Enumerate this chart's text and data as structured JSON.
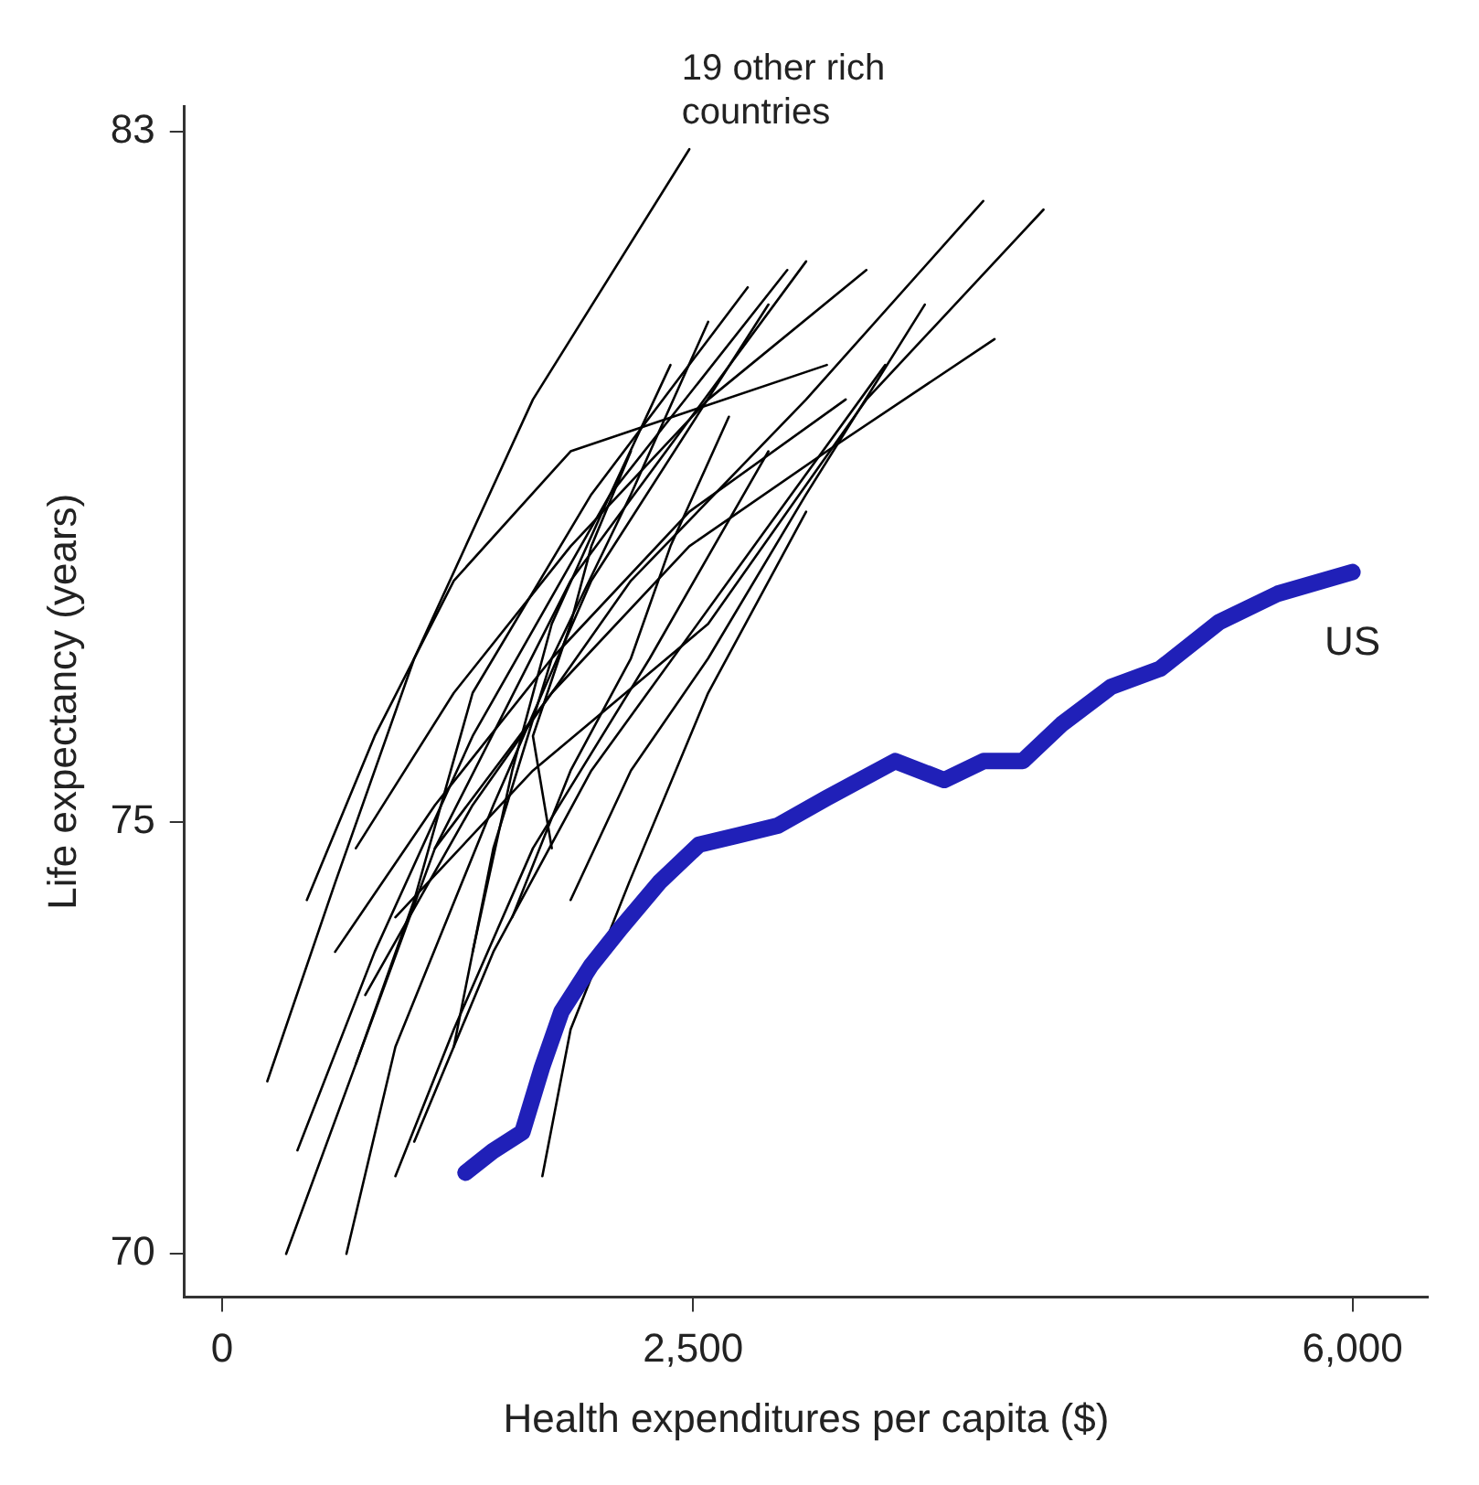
{
  "chart_data": {
    "type": "line",
    "xlabel": "Health expenditures per capita ($)",
    "ylabel": "Life expectancy (years)",
    "annotations": [
      "19 other rich countries"
    ],
    "xlim": [
      -200,
      6400
    ],
    "ylim": [
      69.5,
      83.3
    ],
    "xticks": [
      0,
      {
        "value": 2500,
        "label": "2,500"
      },
      {
        "value": 6000,
        "label": "6,000"
      }
    ],
    "yticks": [
      70,
      75,
      83
    ],
    "marker": "none",
    "legend": false,
    "series": [
      {
        "color": "#000000",
        "x": [
          240,
          600,
          1020,
          1650,
          2480
        ],
        "values": [
          72.0,
          74.3,
          76.9,
          79.9,
          82.8
        ]
      },
      {
        "color": "#000000",
        "x": [
          340,
          710,
          1130,
          1850,
          3100
        ],
        "values": [
          70.0,
          72.2,
          74.7,
          77.8,
          81.5
        ]
      },
      {
        "color": "#000000",
        "x": [
          400,
          810,
          1330,
          2060,
          3000
        ],
        "values": [
          71.2,
          73.5,
          76.0,
          78.8,
          81.4
        ]
      },
      {
        "color": "#000000",
        "x": [
          660,
          920,
          1440,
          1960,
          2900
        ],
        "values": [
          70.0,
          72.4,
          75.2,
          77.8,
          81.0
        ]
      },
      {
        "color": "#000000",
        "x": [
          710,
          1020,
          1330,
          1960,
          2790
        ],
        "values": [
          72.2,
          74.1,
          76.5,
          78.8,
          81.2
        ]
      },
      {
        "color": "#000000",
        "x": [
          450,
          810,
          1230,
          1850,
          3210
        ],
        "values": [
          74.1,
          76.0,
          77.8,
          79.3,
          80.3
        ]
      },
      {
        "color": "#000000",
        "x": [
          760,
          1330,
          2170,
          3100,
          4040
        ],
        "values": [
          73.0,
          75.2,
          77.8,
          79.9,
          82.2
        ]
      },
      {
        "color": "#000000",
        "x": [
          920,
          1650,
          2580,
          3420,
          4360
        ],
        "values": [
          73.9,
          75.6,
          77.3,
          79.9,
          82.1
        ]
      },
      {
        "color": "#000000",
        "x": [
          1130,
          1750,
          2480,
          3210,
          4100
        ],
        "values": [
          74.7,
          76.5,
          78.2,
          79.3,
          80.6
        ]
      },
      {
        "color": "#000000",
        "x": [
          1020,
          1440,
          1960,
          2690,
          3520
        ],
        "values": [
          71.3,
          73.5,
          75.6,
          77.8,
          80.3
        ]
      },
      {
        "color": "#000000",
        "x": [
          1230,
          1440,
          1750,
          2170,
          2580
        ],
        "values": [
          72.4,
          74.7,
          76.9,
          78.8,
          80.8
        ]
      },
      {
        "color": "#000000",
        "x": [
          1330,
          1540,
          1750,
          2060,
          2380
        ],
        "values": [
          73.5,
          75.6,
          77.3,
          78.8,
          80.3
        ]
      },
      {
        "color": "#000000",
        "x": [
          1540,
          1850,
          2170,
          2380,
          2690
        ],
        "values": [
          73.9,
          75.6,
          76.9,
          78.2,
          79.7
        ]
      },
      {
        "color": "#000000",
        "x": [
          1750,
          1650,
          1850,
          1960,
          2170
        ],
        "values": [
          74.7,
          76.0,
          77.3,
          78.2,
          79.3
        ]
      },
      {
        "color": "#000000",
        "x": [
          1850,
          2170,
          2580,
          3100,
          3730
        ],
        "values": [
          74.1,
          75.6,
          76.9,
          78.8,
          81.0
        ]
      },
      {
        "color": "#000000",
        "x": [
          710,
          1230,
          1850,
          2580,
          3420
        ],
        "values": [
          74.7,
          76.5,
          78.2,
          79.9,
          81.4
        ]
      },
      {
        "color": "#000000",
        "x": [
          600,
          1130,
          1750,
          2480,
          3310
        ],
        "values": [
          73.5,
          75.2,
          76.9,
          78.6,
          79.9
        ]
      },
      {
        "color": "#000000",
        "x": [
          920,
          1230,
          1650,
          2270,
          2900
        ],
        "values": [
          70.9,
          72.6,
          74.7,
          76.9,
          79.3
        ]
      },
      {
        "color": "#000000",
        "x": [
          1700,
          1850,
          2160,
          2580,
          3100
        ],
        "values": [
          70.9,
          72.6,
          74.3,
          76.5,
          78.6
        ]
      },
      {
        "name": "US",
        "color": "#2020b8",
        "x": [
          1292,
          1437,
          1594,
          1698,
          1802,
          1958,
          2115,
          2323,
          2531,
          2740,
          2948,
          3208,
          3573,
          3833,
          4042,
          4250,
          4458,
          4719,
          4979,
          5292,
          5604,
          6000
        ],
        "values": [
          70.94,
          71.19,
          71.41,
          72.16,
          72.81,
          73.34,
          73.77,
          74.31,
          74.74,
          74.85,
          74.96,
          75.28,
          75.71,
          75.49,
          75.71,
          75.71,
          76.14,
          76.57,
          76.78,
          77.32,
          77.65,
          77.9
        ]
      }
    ]
  }
}
